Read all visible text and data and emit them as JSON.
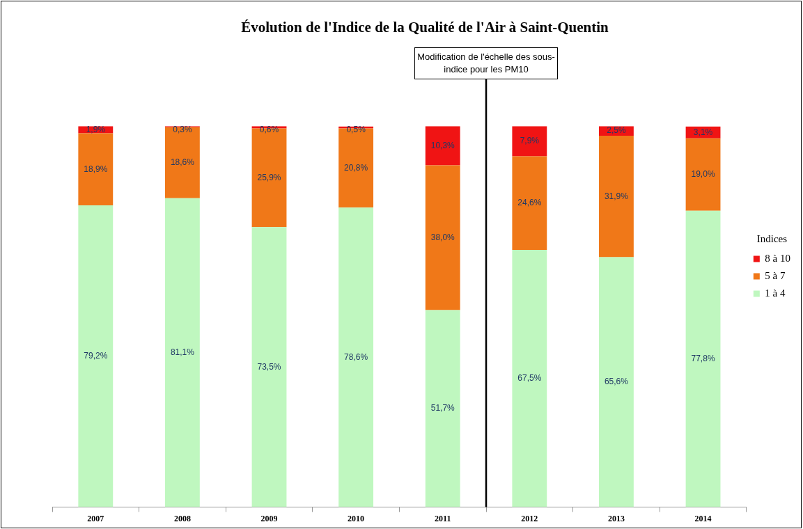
{
  "chart_data": {
    "type": "bar",
    "title": "Évolution de l'Indice de la Qualité de l'Air à Saint-Quentin",
    "legend_title": "Indices",
    "legend": "right",
    "stacked": true,
    "grid": false,
    "tick_labels": "x",
    "categories": [
      "2007",
      "2008",
      "2009",
      "2010",
      "2011",
      "2012",
      "2013",
      "2014"
    ],
    "series": [
      {
        "name": "1 à 4",
        "color": "#bff7bf",
        "values": [
          79.2,
          81.1,
          73.5,
          78.6,
          51.7,
          67.5,
          65.6,
          77.8
        ],
        "value_labels": [
          "79,2%",
          "81,1%",
          "73,5%",
          "78,6%",
          "51,7%",
          "67,5%",
          "65,6%",
          "77,8%"
        ]
      },
      {
        "name": "5 à 7",
        "color": "#f07818",
        "values": [
          18.9,
          18.6,
          25.9,
          20.8,
          38.0,
          24.6,
          31.9,
          19.0
        ],
        "value_labels": [
          "18,9%",
          "18,6%",
          "25,9%",
          "20,8%",
          "38,0%",
          "24,6%",
          "31,9%",
          "19,0%"
        ]
      },
      {
        "name": "8 à 10",
        "color": "#f01414",
        "values": [
          1.9,
          0.3,
          0.6,
          0.5,
          10.3,
          7.9,
          2.5,
          3.1
        ],
        "value_labels": [
          "1,9%",
          "0,3%",
          "0,6%",
          "0,5%",
          "10,3%",
          "7,9%",
          "2,5%",
          "3,1%"
        ]
      }
    ],
    "annotations": [
      "Modification de l'échelle des sous-indice pour les PM10"
    ]
  }
}
